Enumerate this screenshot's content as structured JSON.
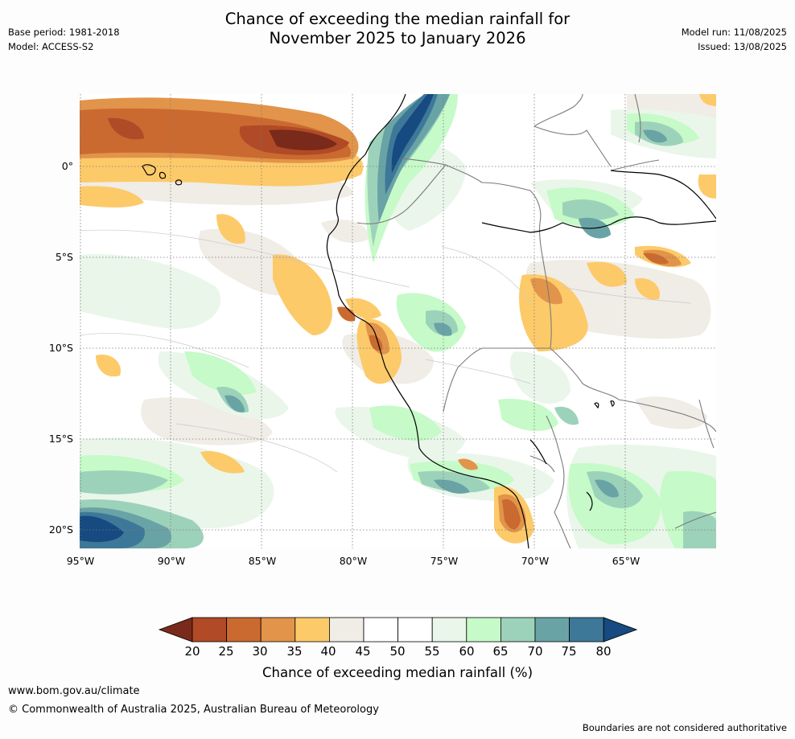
{
  "header": {
    "title_line1": "Chance of exceeding the median rainfall for",
    "title_line2": "November 2025 to January 2026",
    "base_period": "Base period: 1981-2018",
    "model": "Model: ACCESS-S2",
    "model_run": "Model run: 11/08/2025",
    "issued": "Issued: 13/08/2025"
  },
  "map": {
    "latitude_labels": [
      "0°",
      "5°S",
      "10°S",
      "15°S",
      "20°S"
    ],
    "longitude_labels": [
      "95°W",
      "90°W",
      "85°W",
      "80°W",
      "75°W",
      "70°W",
      "65°W"
    ]
  },
  "legend": {
    "title": "Chance of exceeding median rainfall (%)",
    "ticks": [
      "20",
      "25",
      "30",
      "35",
      "40",
      "45",
      "50",
      "55",
      "60",
      "65",
      "70",
      "75",
      "80"
    ],
    "colors": [
      "#7a2a1a",
      "#b14a26",
      "#cb6a30",
      "#e1944a",
      "#fdca6a",
      "#f0ece6",
      "#ffffff",
      "#ffffff",
      "#eaf6ea",
      "#c6fac8",
      "#9dd2ba",
      "#6aa3a6",
      "#3e7898",
      "#164a80"
    ]
  },
  "footer": {
    "website": "www.bom.gov.au/climate",
    "copyright": "© Commonwealth of Australia 2025, Australian Bureau of Meteorology",
    "disclaimer": "Boundaries are not considered authoritative"
  }
}
